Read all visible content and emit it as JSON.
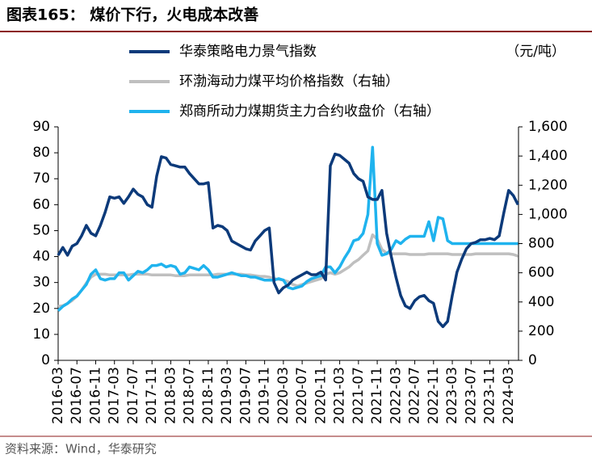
{
  "chart_data": {
    "type": "line",
    "title": "图表165： 煤价下行，火电成本改善",
    "y2_label": "（元/吨）",
    "source": "资料来源：Wind，华泰研究",
    "categories": [
      "2016-03",
      null,
      null,
      null,
      "2016-07",
      null,
      null,
      null,
      "2016-11",
      null,
      null,
      null,
      "2017-03",
      null,
      null,
      null,
      "2017-07",
      null,
      null,
      null,
      "2017-11",
      null,
      null,
      null,
      "2018-03",
      null,
      null,
      null,
      "2018-07",
      null,
      null,
      null,
      "2018-11",
      null,
      null,
      null,
      "2019-03",
      null,
      null,
      null,
      "2019-07",
      null,
      null,
      null,
      "2019-11",
      null,
      null,
      null,
      "2020-03",
      null,
      null,
      null,
      "2020-07",
      null,
      null,
      null,
      "2020-11",
      null,
      null,
      null,
      "2021-03",
      null,
      null,
      null,
      "2021-07",
      null,
      null,
      null,
      "2021-11",
      null,
      null,
      null,
      "2022-03",
      null,
      null,
      null,
      "2022-07",
      null,
      null,
      null,
      "2022-11",
      null,
      null,
      null,
      "2023-03",
      null,
      null,
      null,
      "2023-07",
      null,
      null,
      null,
      "2023-11",
      null,
      null,
      null,
      "2024-03",
      null,
      null
    ],
    "series": [
      {
        "name": "华泰策略电力景气指数",
        "color": "#0c3a7a",
        "axis": "y",
        "values": [
          40.5,
          43.5,
          40.5,
          44,
          45,
          48,
          52,
          49,
          48,
          52,
          57,
          63,
          62.5,
          63,
          60.5,
          63,
          66,
          64,
          63,
          60,
          59,
          71,
          78.5,
          78,
          75.5,
          75,
          74.5,
          74.5,
          72,
          70,
          68,
          68,
          68.5,
          51,
          52,
          51.5,
          50,
          46,
          45,
          44,
          43,
          42.5,
          46,
          48,
          50,
          51,
          30,
          26,
          28,
          29,
          31,
          32,
          33,
          34,
          33,
          33,
          34,
          31,
          75,
          79.5,
          79,
          77.5,
          76,
          72,
          70,
          69,
          63,
          62,
          62,
          65.5,
          49,
          40,
          32,
          25,
          21,
          20,
          23,
          24.5,
          25,
          23,
          22,
          15,
          13,
          15,
          25,
          34,
          39,
          43,
          45,
          45.5,
          46.5,
          46.5,
          47,
          46.5,
          48,
          57,
          65.5,
          63.5,
          60
        ]
      },
      {
        "name": "环渤海动力煤平均价格指数（右轴）",
        "color": "#bfbfbf",
        "axis": "y2",
        "values": [
          370,
          375,
          390,
          410,
          440,
          480,
          530,
          570,
          590,
          590,
          590,
          585,
          585,
          585,
          585,
          585,
          590,
          590,
          590,
          590,
          585,
          585,
          585,
          585,
          585,
          580,
          580,
          580,
          585,
          585,
          585,
          585,
          585,
          585,
          590,
          590,
          590,
          590,
          590,
          590,
          585,
          585,
          580,
          575,
          575,
          570,
          560,
          555,
          550,
          540,
          520,
          510,
          520,
          530,
          540,
          550,
          560,
          590,
          600,
          590,
          600,
          620,
          640,
          670,
          690,
          720,
          750,
          860,
          830,
          760,
          735,
          730,
          730,
          730,
          730,
          725,
          725,
          725,
          725,
          730,
          730,
          730,
          730,
          730,
          725,
          725,
          725,
          725,
          725,
          730,
          730,
          730,
          730,
          730,
          730,
          730,
          730,
          725,
          715
        ]
      },
      {
        "name": "郑商所动力煤期货主力合约收盘价（右轴）",
        "color": "#1fb3ee",
        "axis": "y2",
        "values": [
          340,
          370,
          390,
          420,
          440,
          480,
          520,
          590,
          620,
          560,
          550,
          560,
          560,
          600,
          600,
          550,
          580,
          610,
          600,
          620,
          650,
          650,
          660,
          640,
          650,
          640,
          590,
          600,
          640,
          630,
          620,
          650,
          620,
          570,
          570,
          580,
          590,
          600,
          590,
          580,
          580,
          570,
          570,
          560,
          550,
          550,
          550,
          560,
          550,
          500,
          490,
          500,
          510,
          540,
          560,
          570,
          580,
          640,
          640,
          600,
          640,
          700,
          750,
          820,
          830,
          870,
          1000,
          1460,
          800,
          720,
          730,
          760,
          820,
          800,
          830,
          850,
          850,
          850,
          850,
          950,
          820,
          980,
          970,
          820,
          800,
          800,
          800,
          800,
          800,
          800,
          800,
          800,
          800,
          800,
          800,
          800,
          800,
          800,
          800
        ]
      }
    ],
    "ylim": [
      0,
      90
    ],
    "yticks": [
      0,
      10,
      20,
      30,
      40,
      50,
      60,
      70,
      80,
      90
    ],
    "y2lim": [
      0,
      1600
    ],
    "y2ticks": [
      0,
      200,
      400,
      600,
      800,
      {
        "value": 1000,
        "label": "1,000"
      },
      {
        "value": 1200,
        "label": "1,200"
      },
      {
        "value": 1400,
        "label": "1,400"
      },
      {
        "value": 1600,
        "label": "1,600"
      }
    ]
  }
}
